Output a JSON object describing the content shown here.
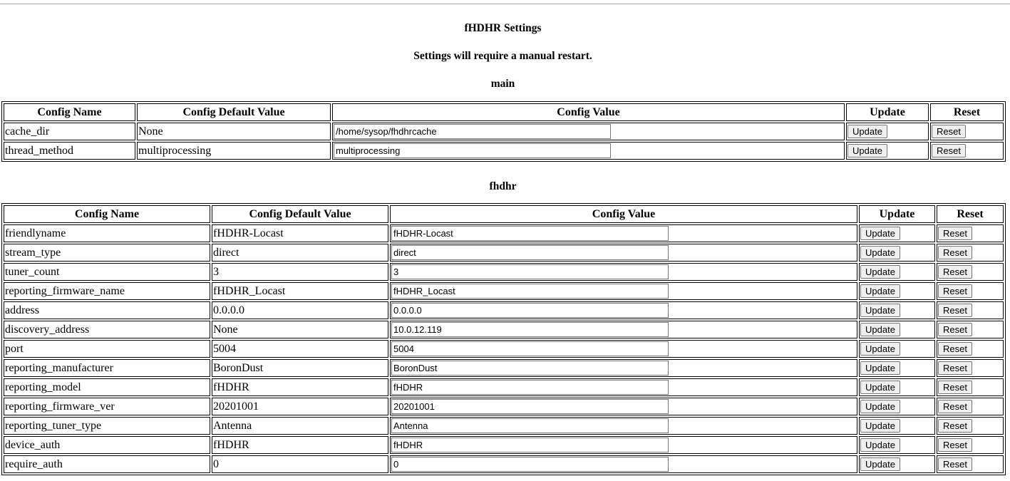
{
  "title": "fHDHR Settings",
  "notice": "Settings will require a manual restart.",
  "headers": {
    "name": "Config Name",
    "default": "Config Default Value",
    "value": "Config Value",
    "update": "Update",
    "reset": "Reset"
  },
  "buttons": {
    "update": "Update",
    "reset": "Reset"
  },
  "sections": [
    {
      "name": "main",
      "rows": [
        {
          "name": "cache_dir",
          "default": "None",
          "value": "/home/sysop/fhdhrcache"
        },
        {
          "name": "thread_method",
          "default": "multiprocessing",
          "value": "multiprocessing"
        }
      ]
    },
    {
      "name": "fhdhr",
      "rows": [
        {
          "name": "friendlyname",
          "default": "fHDHR-Locast",
          "value": "fHDHR-Locast"
        },
        {
          "name": "stream_type",
          "default": "direct",
          "value": "direct"
        },
        {
          "name": "tuner_count",
          "default": "3",
          "value": "3"
        },
        {
          "name": "reporting_firmware_name",
          "default": "fHDHR_Locast",
          "value": "fHDHR_Locast"
        },
        {
          "name": "address",
          "default": "0.0.0.0",
          "value": "0.0.0.0"
        },
        {
          "name": "discovery_address",
          "default": "None",
          "value": "10.0.12.119"
        },
        {
          "name": "port",
          "default": "5004",
          "value": "5004"
        },
        {
          "name": "reporting_manufacturer",
          "default": "BoronDust",
          "value": "BoronDust"
        },
        {
          "name": "reporting_model",
          "default": "fHDHR",
          "value": "fHDHR"
        },
        {
          "name": "reporting_firmware_ver",
          "default": "20201001",
          "value": "20201001"
        },
        {
          "name": "reporting_tuner_type",
          "default": "Antenna",
          "value": "Antenna"
        },
        {
          "name": "device_auth",
          "default": "fHDHR",
          "value": "fHDHR"
        },
        {
          "name": "require_auth",
          "default": "0",
          "value": "0"
        }
      ]
    }
  ]
}
